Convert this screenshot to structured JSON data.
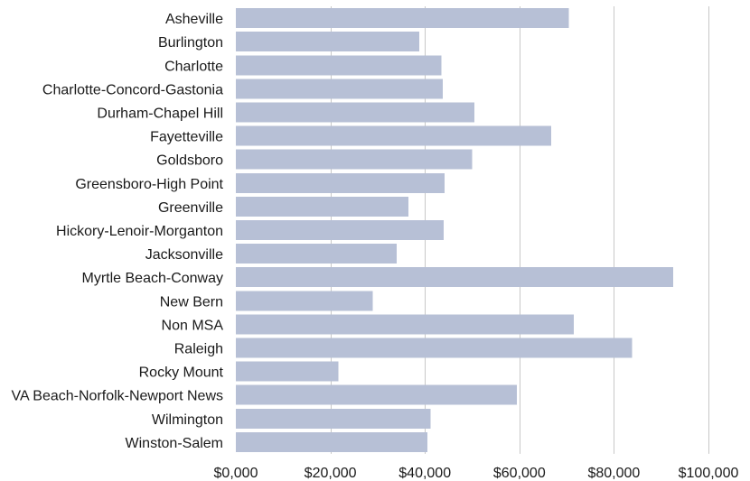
{
  "chart_data": {
    "type": "bar",
    "orientation": "horizontal",
    "title": "",
    "xlabel": "",
    "ylabel": "",
    "categories": [
      "Asheville",
      "Burlington",
      "Charlotte",
      "Charlotte-Concord-Gastonia",
      "Durham-Chapel Hill",
      "Fayetteville",
      "Goldsboro",
      "Greensboro-High Point",
      "Greenville",
      "Hickory-Lenoir-Morganton",
      "Jacksonville",
      "Myrtle Beach-Conway",
      "New Bern",
      "Non MSA",
      "Raleigh",
      "Rocky Mount",
      "VA Beach-Norfolk-Newport News",
      "Wilmington",
      "Winston-Salem"
    ],
    "values": [
      70500,
      38800,
      43500,
      43800,
      50500,
      66700,
      50000,
      44200,
      36500,
      44000,
      34000,
      92500,
      29000,
      71500,
      83800,
      21700,
      59500,
      41200,
      40500
    ],
    "xlim": [
      0,
      100000
    ],
    "xticks": [
      0,
      20000,
      40000,
      60000,
      80000,
      100000
    ],
    "xtick_labels": [
      "$0,000",
      "$20,000",
      "$40,000",
      "$60,000",
      "$80,000",
      "$100,000"
    ],
    "grid": true,
    "legend": "none",
    "bar_color": "#b7c0d6"
  }
}
